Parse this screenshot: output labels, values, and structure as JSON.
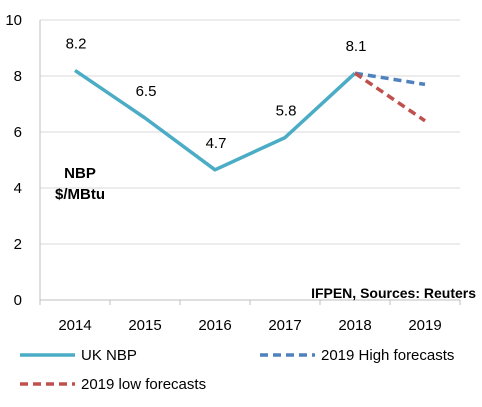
{
  "chart_data": {
    "type": "line",
    "categories": [
      "2014",
      "2015",
      "2016",
      "2017",
      "2018",
      "2019"
    ],
    "ylim": [
      0,
      10
    ],
    "yticks": [
      "0",
      "2",
      "4",
      "6",
      "8",
      "10"
    ],
    "grid": true,
    "series": [
      {
        "name": "UK NBP",
        "x": [
          "2014",
          "2015",
          "2016",
          "2017",
          "2018"
        ],
        "values": [
          8.2,
          6.5,
          4.65,
          5.8,
          8.1
        ],
        "labels": [
          "8.2",
          "6.5",
          "4.7",
          "5.8",
          "8.1"
        ],
        "color": "#4bacc6",
        "style": "solid"
      },
      {
        "name": "2019 High forecasts",
        "x": [
          "2018",
          "2019"
        ],
        "values": [
          8.1,
          7.7
        ],
        "color": "#4f81bd",
        "style": "dashed"
      },
      {
        "name": "2019 low forecasts",
        "x": [
          "2018",
          "2019"
        ],
        "values": [
          8.1,
          6.4
        ],
        "color": "#c0504d",
        "style": "dashed"
      }
    ],
    "unit_label_line1": "NBP",
    "unit_label_line2": "$/MBtu",
    "source": "IFPEN, Sources: Reuters",
    "legend_placement": "bottom"
  }
}
